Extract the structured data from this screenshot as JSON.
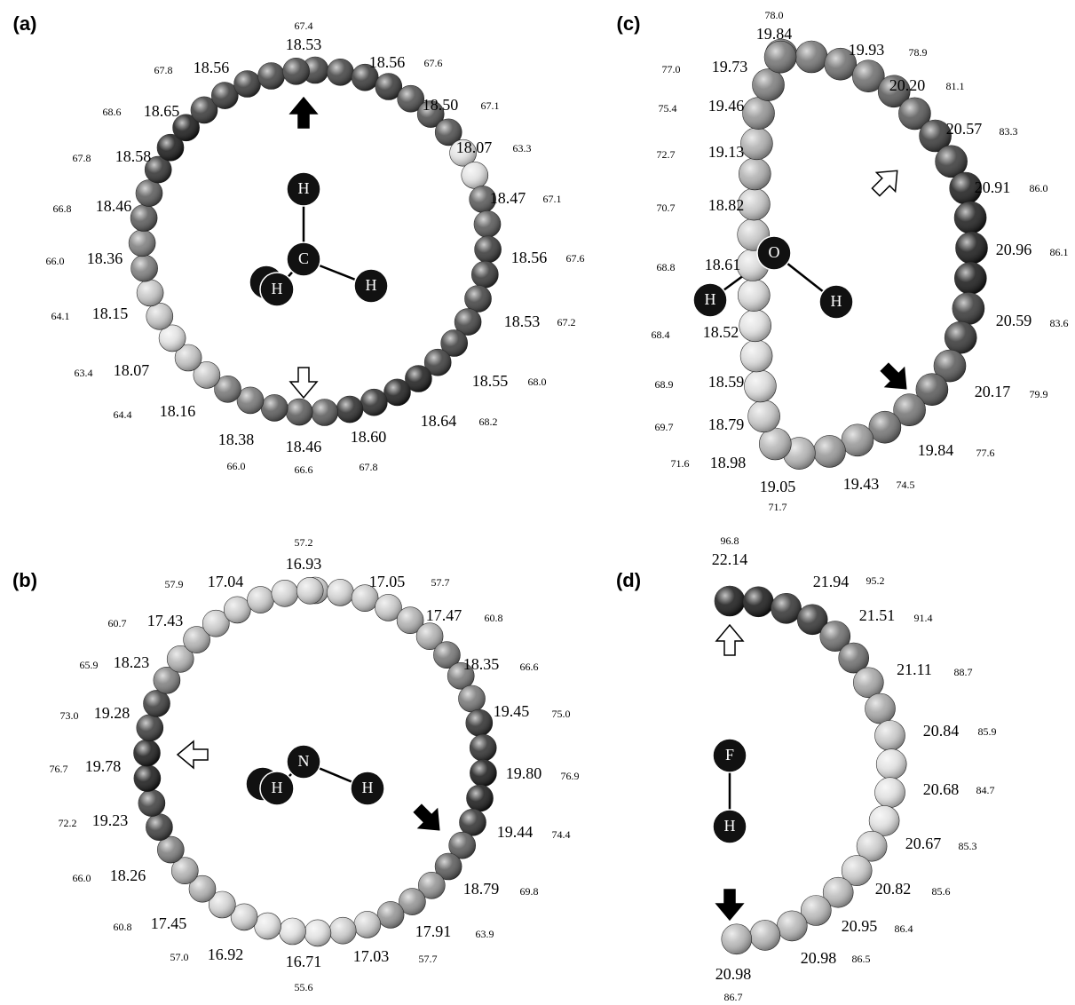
{
  "panels": [
    {
      "label": "(a)",
      "atoms": [
        {
          "symbol": "H"
        },
        {
          "symbol": "C"
        },
        {
          "symbol": "H"
        },
        {
          "symbol": "H"
        }
      ],
      "points": [
        {
          "value": "18.53",
          "percent": "67.4"
        },
        {
          "value": "18.56",
          "percent": "67.6"
        },
        {
          "value": "18.50",
          "percent": "67.1"
        },
        {
          "value": "18.07",
          "percent": "63.3"
        },
        {
          "value": "18.47",
          "percent": "67.1"
        },
        {
          "value": "18.56",
          "percent": "67.6"
        },
        {
          "value": "18.53",
          "percent": "67.2"
        },
        {
          "value": "18.55",
          "percent": "68.0"
        },
        {
          "value": "18.64",
          "percent": "68.2"
        },
        {
          "value": "18.60",
          "percent": "67.8"
        },
        {
          "value": "18.46",
          "percent": "66.6"
        },
        {
          "value": "18.38",
          "percent": "66.0"
        },
        {
          "value": "18.16",
          "percent": "64.4"
        },
        {
          "value": "18.07",
          "percent": "63.4"
        },
        {
          "value": "18.15",
          "percent": "64.1"
        },
        {
          "value": "18.36",
          "percent": "66.0"
        },
        {
          "value": "18.46",
          "percent": "66.8"
        },
        {
          "value": "18.58",
          "percent": "67.8"
        },
        {
          "value": "18.65",
          "percent": "68.6"
        },
        {
          "value": "18.56",
          "percent": "67.8"
        }
      ]
    },
    {
      "label": "(b)",
      "atoms": [
        {
          "symbol": "N"
        },
        {
          "symbol": "H"
        },
        {
          "symbol": "H"
        }
      ],
      "points": [
        {
          "value": "16.93",
          "percent": "57.2"
        },
        {
          "value": "17.05",
          "percent": "57.7"
        },
        {
          "value": "17.47",
          "percent": "60.8"
        },
        {
          "value": "18.35",
          "percent": "66.6"
        },
        {
          "value": "19.45",
          "percent": "75.0"
        },
        {
          "value": "19.80",
          "percent": "76.9"
        },
        {
          "value": "19.44",
          "percent": "74.4"
        },
        {
          "value": "18.79",
          "percent": "69.8"
        },
        {
          "value": "17.91",
          "percent": "63.9"
        },
        {
          "value": "17.03",
          "percent": "57.7"
        },
        {
          "value": "16.71",
          "percent": "55.6"
        },
        {
          "value": "16.92",
          "percent": "57.0"
        },
        {
          "value": "17.45",
          "percent": "60.8"
        },
        {
          "value": "18.26",
          "percent": "66.0"
        },
        {
          "value": "19.23",
          "percent": "72.2"
        },
        {
          "value": "19.78",
          "percent": "76.7"
        },
        {
          "value": "19.28",
          "percent": "73.0"
        },
        {
          "value": "18.23",
          "percent": "65.9"
        },
        {
          "value": "17.43",
          "percent": "60.7"
        },
        {
          "value": "17.04",
          "percent": "57.9"
        }
      ]
    },
    {
      "label": "(c)",
      "atoms": [
        {
          "symbol": "O"
        },
        {
          "symbol": "H"
        },
        {
          "symbol": "H"
        }
      ],
      "points": [
        {
          "value": "19.84",
          "percent": "78.0"
        },
        {
          "value": "19.93",
          "percent": "78.9"
        },
        {
          "value": "20.20",
          "percent": "81.1"
        },
        {
          "value": "20.57",
          "percent": "83.3"
        },
        {
          "value": "20.91",
          "percent": "86.0"
        },
        {
          "value": "20.96",
          "percent": "86.1"
        },
        {
          "value": "20.59",
          "percent": "83.6"
        },
        {
          "value": "20.17",
          "percent": "79.9"
        },
        {
          "value": "19.84",
          "percent": "77.6"
        },
        {
          "value": "19.43",
          "percent": "74.5"
        },
        {
          "value": "19.05",
          "percent": "71.7"
        },
        {
          "value": "18.98",
          "percent": "71.6"
        },
        {
          "value": "18.79",
          "percent": "69.7"
        },
        {
          "value": "18.59",
          "percent": "68.9"
        },
        {
          "value": "18.52",
          "percent": "68.4"
        },
        {
          "value": "18.61",
          "percent": "68.8"
        },
        {
          "value": "18.82",
          "percent": "70.7"
        },
        {
          "value": "19.13",
          "percent": "72.7"
        },
        {
          "value": "19.46",
          "percent": "75.4"
        },
        {
          "value": "19.73",
          "percent": "77.0"
        }
      ]
    },
    {
      "label": "(d)",
      "atoms": [
        {
          "symbol": "F"
        },
        {
          "symbol": "H"
        }
      ],
      "points": [
        {
          "value": "22.14",
          "percent": "96.8"
        },
        {
          "value": "21.94",
          "percent": "95.2"
        },
        {
          "value": "21.51",
          "percent": "91.4"
        },
        {
          "value": "21.11",
          "percent": "88.7"
        },
        {
          "value": "20.84",
          "percent": "85.9"
        },
        {
          "value": "20.68",
          "percent": "84.7"
        },
        {
          "value": "20.67",
          "percent": "85.3"
        },
        {
          "value": "20.82",
          "percent": "85.6"
        },
        {
          "value": "20.95",
          "percent": "86.4"
        },
        {
          "value": "20.98",
          "percent": "86.5"
        },
        {
          "value": "20.98",
          "percent": "86.7"
        }
      ]
    }
  ]
}
